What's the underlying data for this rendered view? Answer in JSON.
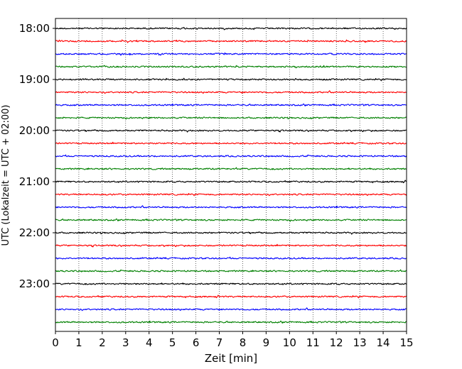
{
  "chart_data": {
    "type": "line",
    "xlabel": "Zeit  [min]",
    "ylabel": "UTC (Lokalzeit = UTC + 02:00)",
    "xlim": [
      0,
      15
    ],
    "x_ticks": [
      "0",
      "1",
      "2",
      "3",
      "4",
      "5",
      "6",
      "7",
      "8",
      "9",
      "10",
      "11",
      "12",
      "13",
      "14",
      "15"
    ],
    "y_ticks": [
      "18:00",
      "19:00",
      "20:00",
      "21:00",
      "22:00",
      "23:00"
    ],
    "grid": "vertical dotted lines at each minute",
    "trace_interval_minutes": 15,
    "trace_start": "18:00",
    "trace_count": 24,
    "trace_colors": [
      "#000000",
      "#ff0000",
      "#0000ff",
      "#008000"
    ]
  }
}
